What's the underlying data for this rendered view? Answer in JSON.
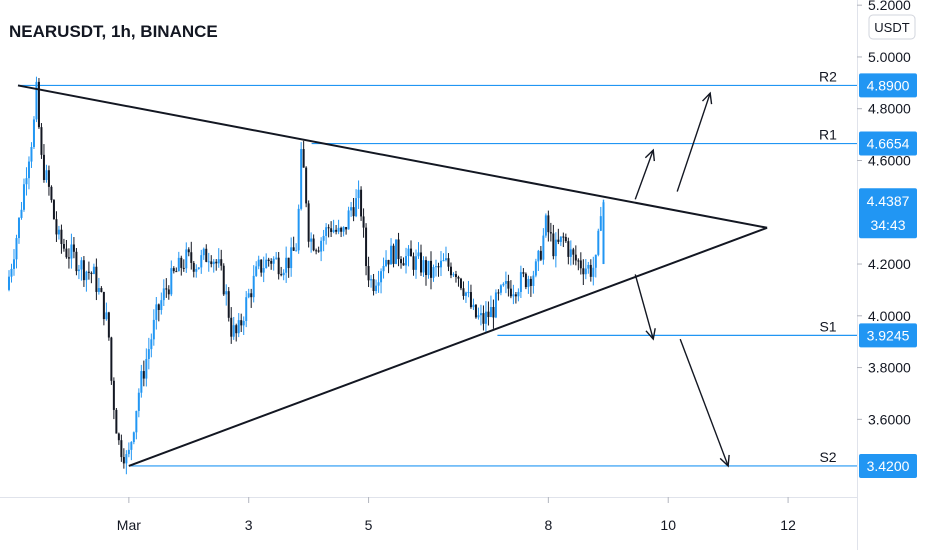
{
  "header": {
    "title": "NEARUSDT, 1h, BINANCE"
  },
  "colors": {
    "accent": "#2196f3",
    "candle": "#131722",
    "candle_up": "#2196f3",
    "trendline": "#131722",
    "axis_border": "#e0e3eb"
  },
  "chart_data": {
    "type": "candlestick",
    "title": "NEARUSDT, 1h, BINANCE",
    "ylim": [
      3.3,
      5.22
    ],
    "x_day_range": [
      -1.15,
      13.15
    ],
    "y_ticks": [
      {
        "value": 5.2,
        "label": "5.2000"
      },
      {
        "value": 5.0,
        "label": "5.0000"
      },
      {
        "value": 4.8,
        "label": "4.8000"
      },
      {
        "value": 4.6,
        "label": "4.6000"
      },
      {
        "value": 4.2,
        "label": "4.2000"
      },
      {
        "value": 4.0,
        "label": "4.0000"
      },
      {
        "value": 3.8,
        "label": "3.8000"
      },
      {
        "value": 3.6,
        "label": "3.6000"
      }
    ],
    "x_ticks": [
      {
        "day": 1,
        "label": "Mar"
      },
      {
        "day": 3,
        "label": "3"
      },
      {
        "day": 5,
        "label": "5"
      },
      {
        "day": 8,
        "label": "8"
      },
      {
        "day": 10,
        "label": "10"
      },
      {
        "day": 12,
        "label": "12"
      }
    ],
    "unit_label": "USDT",
    "levels": [
      {
        "name": "R2",
        "value": 4.89,
        "label": "4.8900",
        "start_day": -0.85
      },
      {
        "name": "R1",
        "value": 4.6654,
        "label": "4.6654",
        "start_day": 4.05
      },
      {
        "name": "S1",
        "value": 3.9245,
        "label": "3.9245",
        "start_day": 7.15
      },
      {
        "name": "S2",
        "value": 3.42,
        "label": "3.4200",
        "start_day": 1.0
      }
    ],
    "last_price": {
      "value": 4.4387,
      "label": "4.4387",
      "countdown": "34:43"
    },
    "trendlines": [
      {
        "from": [
          -0.85,
          4.89
        ],
        "to": [
          11.65,
          4.34
        ]
      },
      {
        "from": [
          1.0,
          3.42
        ],
        "to": [
          11.65,
          4.34
        ]
      }
    ],
    "arrows": [
      {
        "from": [
          10.15,
          4.48
        ],
        "to": [
          10.7,
          4.86
        ]
      },
      {
        "from": [
          9.45,
          4.45
        ],
        "to": [
          9.75,
          4.64
        ]
      },
      {
        "from": [
          9.45,
          4.16
        ],
        "to": [
          9.75,
          3.91
        ]
      },
      {
        "from": [
          10.2,
          3.91
        ],
        "to": [
          11.0,
          3.42
        ]
      }
    ],
    "close_path": [
      [
        -1.0,
        4.1
      ],
      [
        -0.8,
        4.35
      ],
      [
        -0.65,
        4.6
      ],
      [
        -0.55,
        4.72
      ],
      [
        -0.5,
        4.86
      ],
      [
        -0.42,
        4.6
      ],
      [
        -0.3,
        4.5
      ],
      [
        -0.15,
        4.3
      ],
      [
        0.0,
        4.25
      ],
      [
        0.15,
        4.22
      ],
      [
        0.3,
        4.18
      ],
      [
        0.45,
        4.16
      ],
      [
        0.6,
        4.05
      ],
      [
        0.7,
        3.95
      ],
      [
        0.75,
        3.75
      ],
      [
        0.82,
        3.6
      ],
      [
        0.88,
        3.5
      ],
      [
        0.95,
        3.48
      ],
      [
        1.02,
        3.43
      ],
      [
        1.1,
        3.55
      ],
      [
        1.2,
        3.7
      ],
      [
        1.35,
        3.85
      ],
      [
        1.5,
        4.0
      ],
      [
        1.65,
        4.1
      ],
      [
        1.8,
        4.16
      ],
      [
        2.0,
        4.22
      ],
      [
        2.2,
        4.2
      ],
      [
        2.4,
        4.25
      ],
      [
        2.55,
        4.18
      ],
      [
        2.65,
        4.1
      ],
      [
        2.75,
        3.95
      ],
      [
        2.85,
        3.92
      ],
      [
        3.0,
        4.05
      ],
      [
        3.2,
        4.18
      ],
      [
        3.4,
        4.22
      ],
      [
        3.6,
        4.2
      ],
      [
        3.75,
        4.22
      ],
      [
        3.85,
        4.28
      ],
      [
        3.92,
        4.62
      ],
      [
        3.98,
        4.52
      ],
      [
        4.05,
        4.3
      ],
      [
        4.2,
        4.28
      ],
      [
        4.4,
        4.35
      ],
      [
        4.6,
        4.3
      ],
      [
        4.75,
        4.42
      ],
      [
        4.9,
        4.45
      ],
      [
        5.0,
        4.2
      ],
      [
        5.1,
        4.12
      ],
      [
        5.3,
        4.22
      ],
      [
        5.5,
        4.25
      ],
      [
        5.7,
        4.22
      ],
      [
        5.9,
        4.2
      ],
      [
        6.1,
        4.16
      ],
      [
        6.3,
        4.2
      ],
      [
        6.5,
        4.18
      ],
      [
        6.65,
        4.1
      ],
      [
        6.8,
        4.0
      ],
      [
        6.95,
        3.98
      ],
      [
        7.1,
        4.02
      ],
      [
        7.3,
        4.1
      ],
      [
        7.5,
        4.12
      ],
      [
        7.7,
        4.15
      ],
      [
        7.85,
        4.18
      ],
      [
        8.0,
        4.35
      ],
      [
        8.15,
        4.25
      ],
      [
        8.3,
        4.3
      ],
      [
        8.45,
        4.22
      ],
      [
        8.6,
        4.2
      ],
      [
        8.75,
        4.18
      ],
      [
        8.85,
        4.2
      ],
      [
        8.92,
        4.44
      ]
    ]
  }
}
